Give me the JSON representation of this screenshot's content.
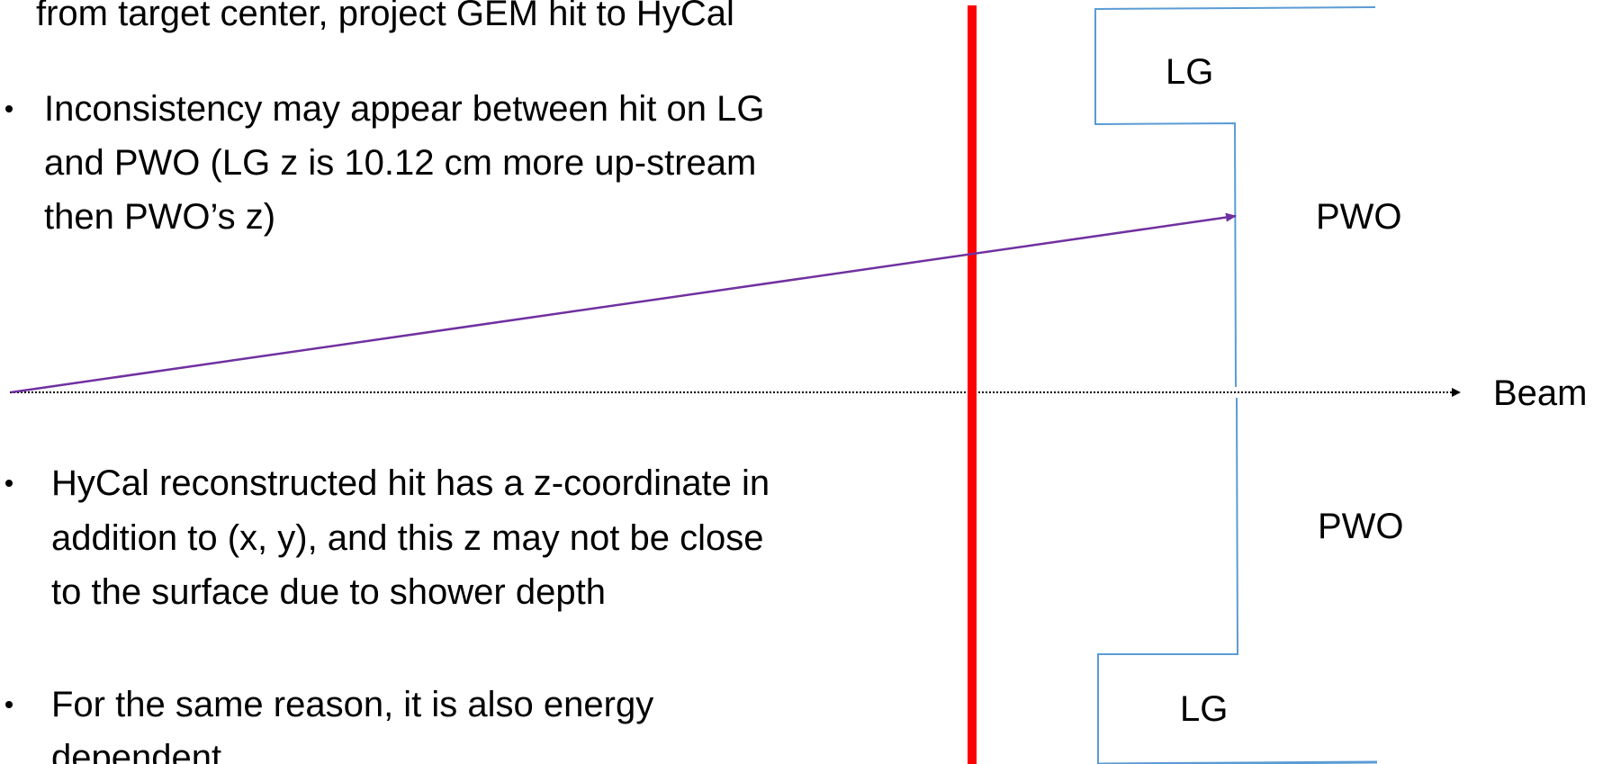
{
  "intro_line": "from target center, project GEM hit to HyCal",
  "bullets": [
    [
      "Inconsistency may appear between hit on LG",
      "and PWO (LG z is 10.12 cm more up-stream",
      "then PWO’s z)"
    ],
    [
      "HyCal reconstructed hit has a z-coordinate in",
      "addition to (x, y), and this z may not be close",
      "to the surface due to shower depth"
    ],
    [
      "For the same reason, it is also energy",
      "dependent"
    ]
  ],
  "detector_labels": [
    "LG",
    "PWO",
    "PWO",
    "LG"
  ],
  "beam_label": "Beam"
}
